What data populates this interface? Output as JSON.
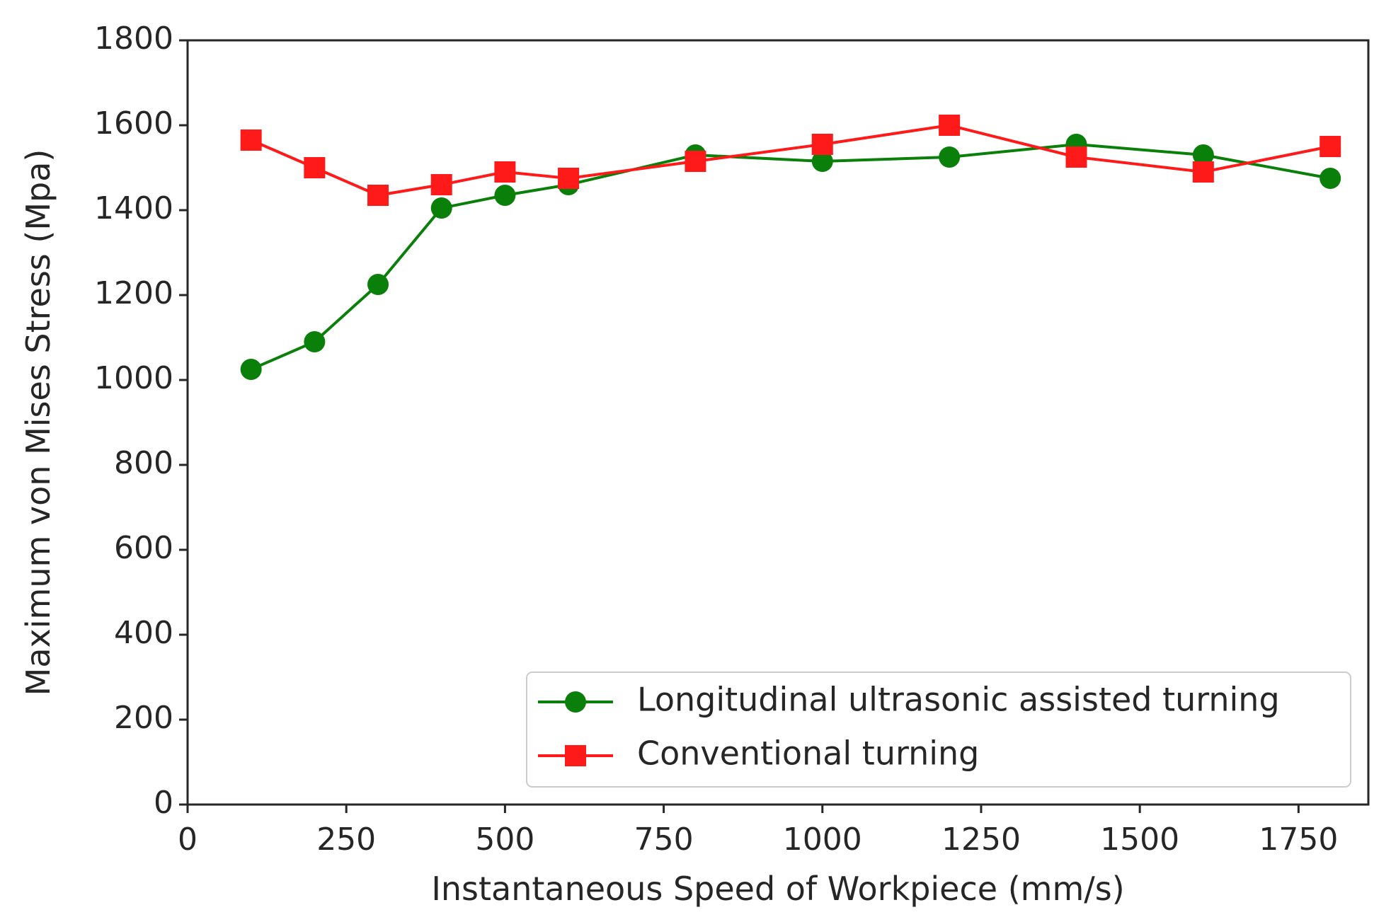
{
  "chart_data": {
    "type": "line",
    "title": "",
    "xlabel": "Instantaneous Speed of Workpiece (mm/s)",
    "ylabel": "Maximum von Mises Stress (Mpa)",
    "xlim": [
      0,
      1860
    ],
    "ylim": [
      0,
      1800
    ],
    "xticks": [
      0,
      250,
      500,
      750,
      1000,
      1250,
      1500,
      1750
    ],
    "yticks": [
      0,
      200,
      400,
      600,
      800,
      1000,
      1200,
      1400,
      1600,
      1800
    ],
    "grid": false,
    "legend_position": "bottom-right",
    "x": [
      100,
      200,
      300,
      400,
      500,
      600,
      800,
      1000,
      1200,
      1400,
      1600,
      1800
    ],
    "series": [
      {
        "name": "Longitudinal ultrasonic assisted turning",
        "color": "#0a800a",
        "marker": "circle",
        "values": [
          1025,
          1090,
          1225,
          1405,
          1435,
          1460,
          1530,
          1515,
          1525,
          1555,
          1530,
          1475
        ]
      },
      {
        "name": "Conventional turning",
        "color": "#ff1a1a",
        "marker": "square",
        "values": [
          1565,
          1500,
          1435,
          1460,
          1490,
          1475,
          1515,
          1555,
          1600,
          1525,
          1490,
          1550
        ]
      }
    ]
  }
}
